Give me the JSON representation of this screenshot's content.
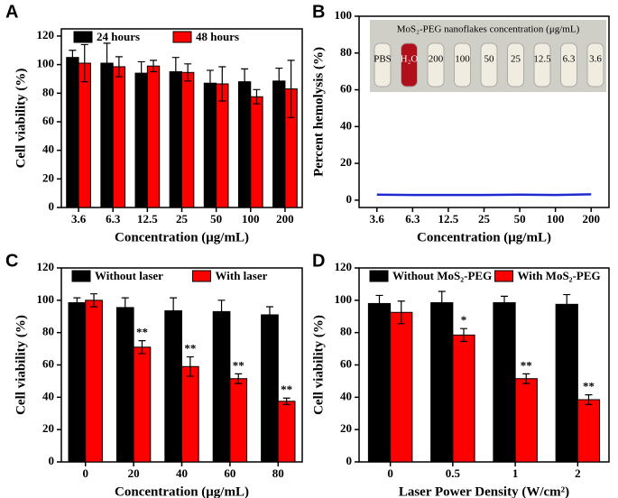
{
  "chart_data": [
    {
      "type": "bar",
      "panel_label": "A",
      "x_label": "Concentration (μg/mL)",
      "y_label": "Cell viability (%)",
      "categories": [
        "3.6",
        "6.3",
        "12.5",
        "25",
        "50",
        "100",
        "200"
      ],
      "series": [
        {
          "name": "24 hours",
          "color": "#000000",
          "values": [
            105,
            101,
            94,
            95,
            87,
            88,
            88.5
          ],
          "errors": [
            5,
            14,
            8,
            10,
            9,
            9,
            9
          ]
        },
        {
          "name": "48 hours",
          "color": "#ff0000",
          "values": [
            101,
            98.5,
            99,
            94.5,
            86.5,
            77.5,
            83
          ],
          "errors": [
            13,
            7,
            4,
            6,
            12,
            5,
            20
          ]
        }
      ],
      "ylim": [
        0,
        125
      ],
      "yticks": [
        0,
        20,
        40,
        60,
        80,
        100,
        120
      ],
      "legend": "top-left"
    },
    {
      "type": "line",
      "panel_label": "B",
      "x_label": "Concentration (μg/mL)",
      "y_label": "Percent hemolysis (%)",
      "categories": [
        "3.6",
        "6.3",
        "12.5",
        "25",
        "50",
        "100",
        "200"
      ],
      "values": [
        3,
        2.8,
        2.8,
        2.8,
        3,
        2.8,
        3.2
      ],
      "color": "#1f2bd0",
      "ylim": [
        -4,
        100
      ],
      "yticks": [
        0,
        20,
        40,
        60,
        80,
        100
      ],
      "inset": {
        "title": "MoS₂-PEG nanoflakes concentration (μg/mL)",
        "labels": [
          "PBS",
          "H₂O",
          "200",
          "100",
          "50",
          "25",
          "12.5",
          "6.3",
          "3.6"
        ]
      }
    },
    {
      "type": "bar",
      "panel_label": "C",
      "x_label": "Concentration (μg/mL)",
      "y_label": "Cell viability (%)",
      "categories": [
        "0",
        "20",
        "40",
        "60",
        "80"
      ],
      "series": [
        {
          "name": "Without laser",
          "color": "#000000",
          "values": [
            98.5,
            95.5,
            93.5,
            93,
            91
          ],
          "errors": [
            3,
            6,
            8,
            7,
            5
          ]
        },
        {
          "name": "With laser",
          "color": "#ff0000",
          "values": [
            100,
            71,
            59,
            51.5,
            37.5
          ],
          "errors": [
            4,
            4,
            6,
            3,
            2
          ],
          "significance": [
            null,
            "**",
            "**",
            "**",
            "**"
          ]
        }
      ],
      "ylim": [
        0,
        120
      ],
      "yticks": [
        0,
        20,
        40,
        60,
        80,
        100,
        120
      ],
      "legend": "top"
    },
    {
      "type": "bar",
      "panel_label": "D",
      "x_label": "Laser Power Density (W/cm²)",
      "y_label": "Cell viability (%)",
      "categories": [
        "0",
        "0.5",
        "1",
        "2"
      ],
      "series": [
        {
          "name": "Without MoS₂-PEG",
          "color": "#000000",
          "values": [
            98,
            98.5,
            98.5,
            97.5
          ],
          "errors": [
            5,
            7,
            4,
            6
          ]
        },
        {
          "name": "With MoS₂-PEG",
          "color": "#ff0000",
          "values": [
            92.5,
            78.5,
            51.5,
            38.5
          ],
          "errors": [
            7,
            4,
            3,
            3
          ],
          "significance": [
            null,
            "*",
            "**",
            "**"
          ]
        }
      ],
      "ylim": [
        0,
        120
      ],
      "yticks": [
        0,
        20,
        40,
        60,
        80,
        100,
        120
      ],
      "legend": "top"
    }
  ]
}
